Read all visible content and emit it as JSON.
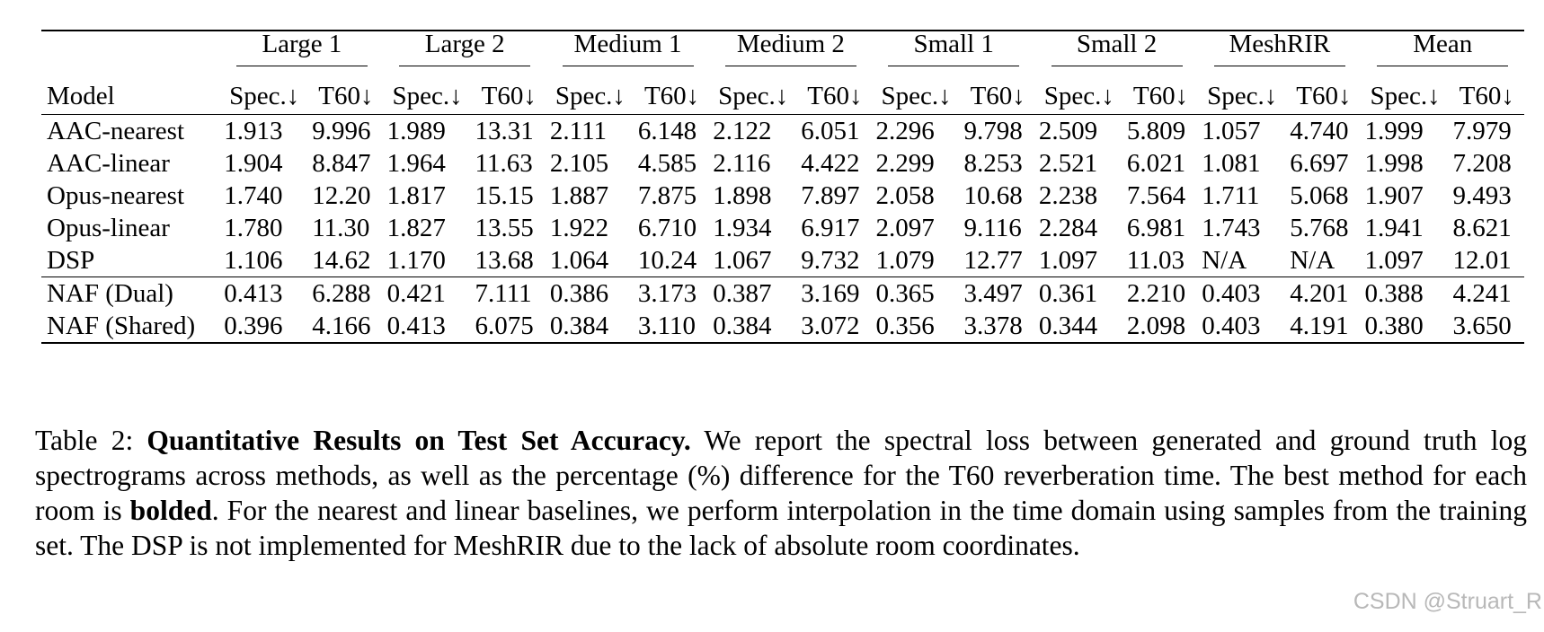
{
  "table": {
    "model_header": "Model",
    "groups": [
      "Large 1",
      "Large 2",
      "Medium 1",
      "Medium 2",
      "Small 1",
      "Small 2",
      "MeshRIR",
      "Mean"
    ],
    "sub_headers": [
      "Spec.↓",
      "T60↓"
    ],
    "baselines": [
      {
        "model": "AAC-nearest",
        "values": [
          "1.913",
          "9.996",
          "1.989",
          "13.31",
          "2.111",
          "6.148",
          "2.122",
          "6.051",
          "2.296",
          "9.798",
          "2.509",
          "5.809",
          "1.057",
          "4.740",
          "1.999",
          "7.979"
        ]
      },
      {
        "model": "AAC-linear",
        "values": [
          "1.904",
          "8.847",
          "1.964",
          "11.63",
          "2.105",
          "4.585",
          "2.116",
          "4.422",
          "2.299",
          "8.253",
          "2.521",
          "6.021",
          "1.081",
          "6.697",
          "1.998",
          "7.208"
        ]
      },
      {
        "model": "Opus-nearest",
        "values": [
          "1.740",
          "12.20",
          "1.817",
          "15.15",
          "1.887",
          "7.875",
          "1.898",
          "7.897",
          "2.058",
          "10.68",
          "2.238",
          "7.564",
          "1.711",
          "5.068",
          "1.907",
          "9.493"
        ]
      },
      {
        "model": "Opus-linear",
        "values": [
          "1.780",
          "11.30",
          "1.827",
          "13.55",
          "1.922",
          "6.710",
          "1.934",
          "6.917",
          "2.097",
          "9.116",
          "2.284",
          "6.981",
          "1.743",
          "5.768",
          "1.941",
          "8.621"
        ]
      },
      {
        "model": "DSP",
        "values": [
          "1.106",
          "14.62",
          "1.170",
          "13.68",
          "1.064",
          "10.24",
          "1.067",
          "9.732",
          "1.079",
          "12.77",
          "1.097",
          "11.03",
          "N/A",
          "N/A",
          "1.097",
          "12.01"
        ]
      }
    ],
    "naf": [
      {
        "model": "NAF (Dual)",
        "values": [
          "0.413",
          "6.288",
          "0.421",
          "7.111",
          "0.386",
          "3.173",
          "0.387",
          "3.169",
          "0.365",
          "3.497",
          "0.361",
          "2.210",
          "0.403",
          "4.201",
          "0.388",
          "4.241"
        ],
        "bold": [
          12
        ]
      },
      {
        "model": "NAF (Shared)",
        "values": [
          "0.396",
          "4.166",
          "0.413",
          "6.075",
          "0.384",
          "3.110",
          "0.384",
          "3.072",
          "0.356",
          "3.378",
          "0.344",
          "2.098",
          "0.403",
          "4.191",
          "0.380",
          "3.650"
        ],
        "bold": [
          0,
          1,
          2,
          3,
          4,
          5,
          6,
          7,
          8,
          9,
          10,
          11,
          12,
          13,
          14,
          15
        ]
      }
    ]
  },
  "caption": {
    "label": "Table 2:",
    "title": "Quantitative Results on Test Set Accuracy.",
    "text1": " We report the spectral loss between generated and ground truth log spectrograms across methods, as well as the percentage (%) difference for the T60 reverberation time. The best method for each room is ",
    "bold_word": "bolded",
    "text2": ". For the nearest and linear baselines, we perform interpolation in the time domain using samples from the training set. The DSP is not implemented for MeshRIR due to the lack of absolute room coordinates."
  },
  "watermark": "CSDN @Struart_R"
}
